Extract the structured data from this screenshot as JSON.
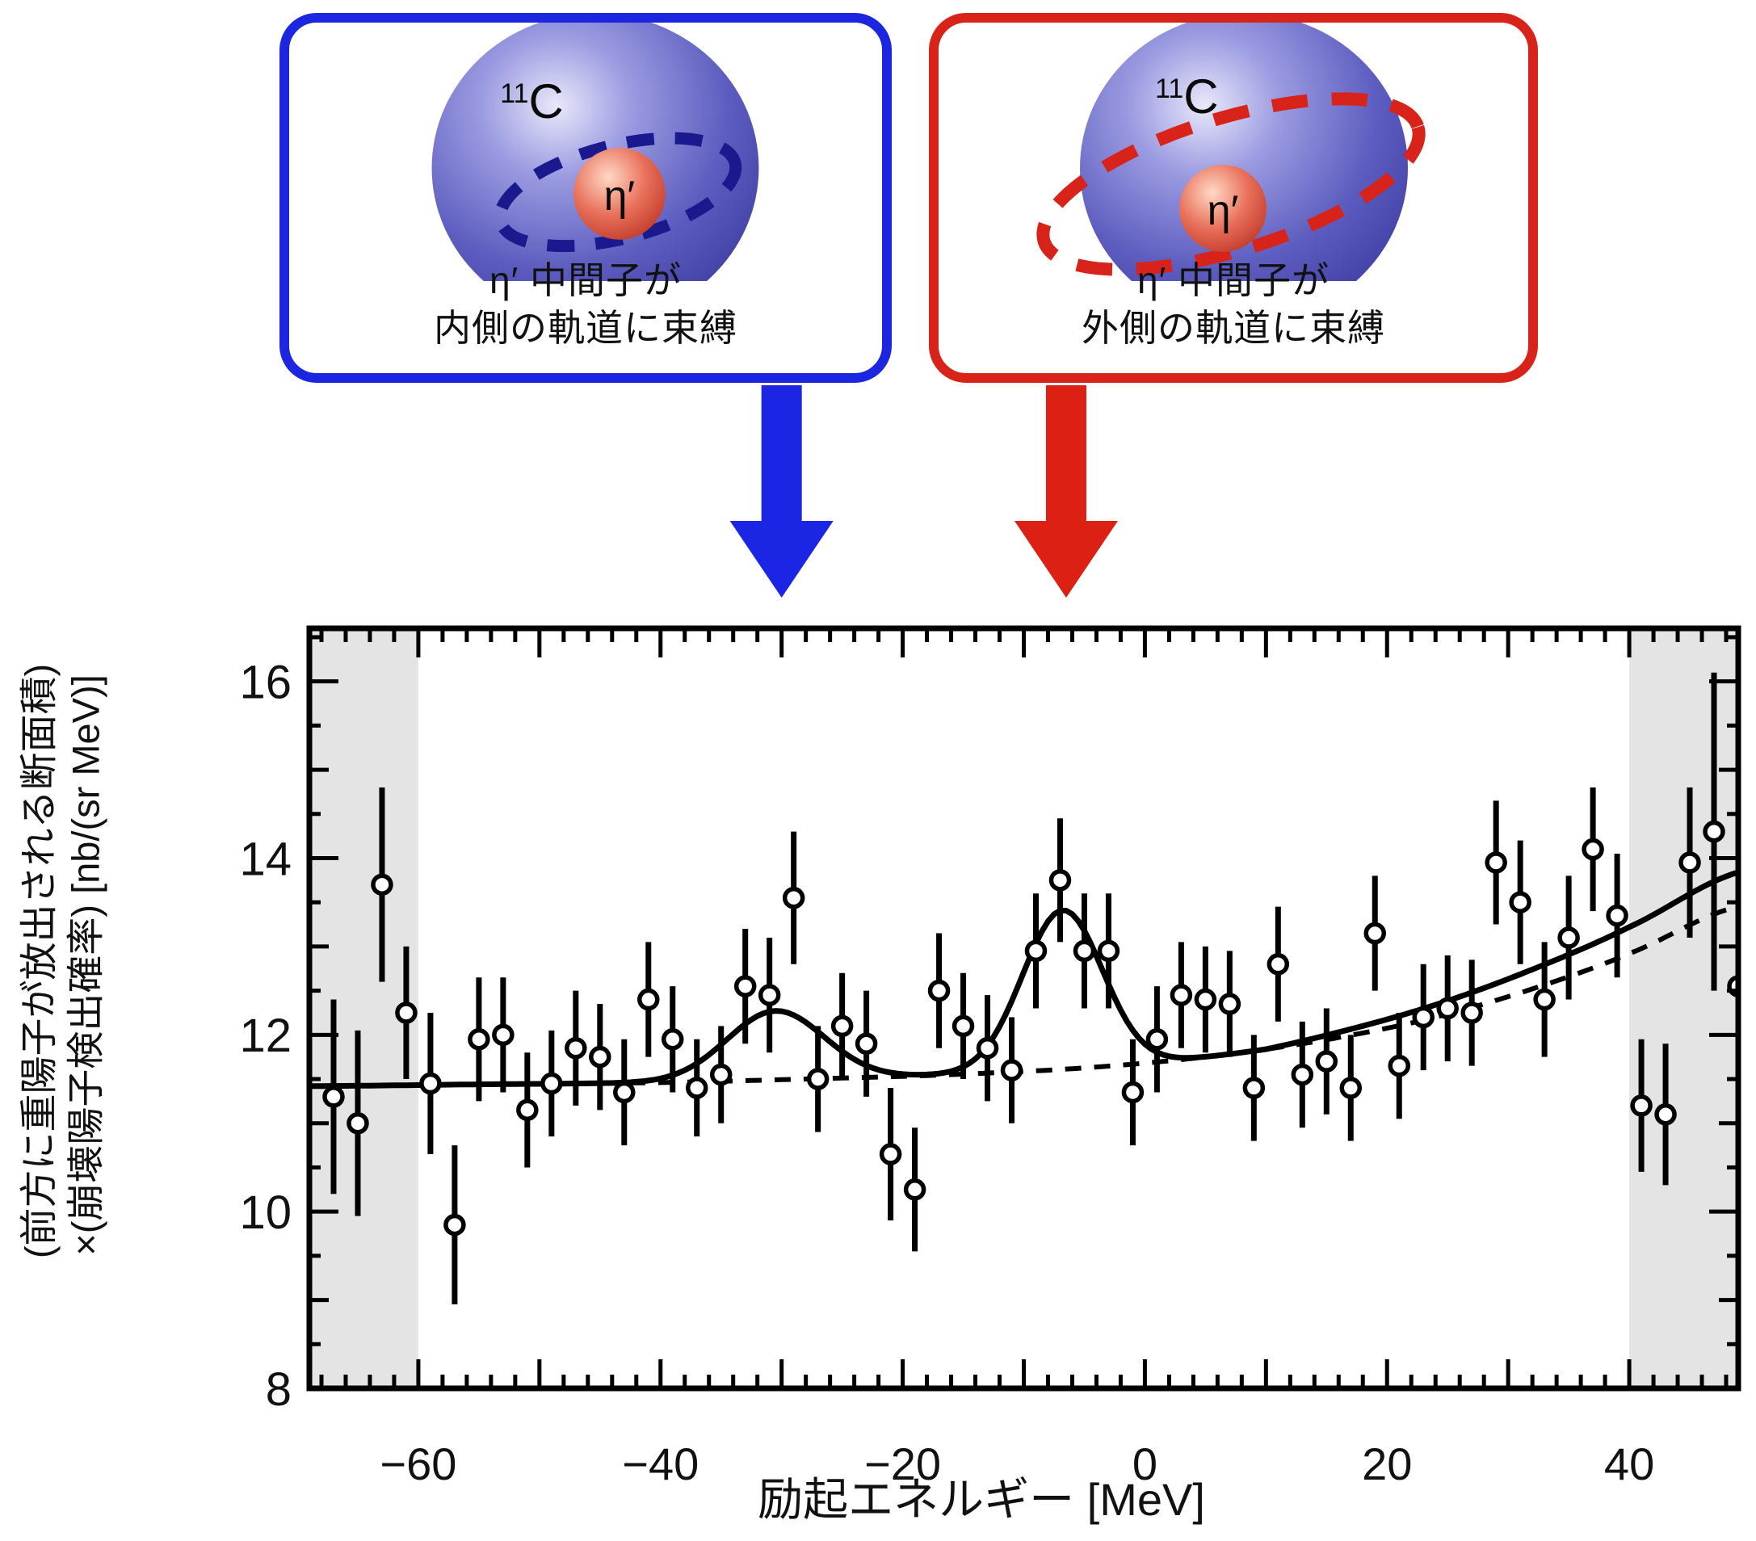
{
  "boxes": {
    "left": {
      "isotope_mass": "11",
      "isotope_element": "C",
      "meson": "η′",
      "caption_line1": "η′ 中間子が",
      "caption_line2": "内側の軌道に束縛",
      "border_color": "#1c25e0",
      "orbit_color": "#1a1a8e",
      "orbit": "inner"
    },
    "right": {
      "isotope_mass": "11",
      "isotope_element": "C",
      "meson": "η′",
      "caption_line1": "η′ 中間子が",
      "caption_line2": "外側の軌道に束縛",
      "border_color": "#d8231a",
      "orbit_color": "#d8231a",
      "orbit": "outer"
    }
  },
  "arrows": {
    "blue_arrow": {
      "energy_mev": -30,
      "color": "#1c25e3"
    },
    "red_arrow": {
      "energy_mev": -6.5,
      "color": "#da2114"
    }
  },
  "chart_data": {
    "type": "scatter",
    "title": "",
    "xlabel": "励起エネルギー [MeV]",
    "ylabel_line1": "(前方に重陽子が放出される断面積)",
    "ylabel_line2": "×(崩壊陽子検出確率) [nb/(sr MeV)]",
    "xlim": [
      -69,
      49
    ],
    "ylim": [
      8,
      16.6
    ],
    "grid": false,
    "legend": "none",
    "xticks": {
      "label_values": [
        -60,
        -40,
        -20,
        0,
        20,
        40
      ],
      "labels": [
        "−60",
        "−40",
        "−20",
        "0",
        "20",
        "40"
      ],
      "major_step": 10,
      "minor_step": 2
    },
    "yticks": {
      "label_values": [
        8,
        10,
        12,
        14,
        16
      ],
      "labels": [
        "8",
        "10",
        "12",
        "14",
        "16"
      ],
      "mid_step": 1,
      "minor_step": 0.5
    },
    "shaded_regions": [
      [
        -69,
        -60
      ],
      [
        40,
        49
      ]
    ],
    "shade_color": "#e4e4e4",
    "points": {
      "x": [
        -67,
        -65,
        -63,
        -61,
        -59,
        -57,
        -55,
        -53,
        -51,
        -49,
        -47,
        -45,
        -43,
        -41,
        -39,
        -37,
        -35,
        -33,
        -31,
        -29,
        -27,
        -25,
        -23,
        -21,
        -19,
        -17,
        -15,
        -13,
        -11,
        -9,
        -7,
        -5,
        -3,
        -1,
        1,
        3,
        5,
        7,
        9,
        11,
        13,
        15,
        17,
        19,
        21,
        23,
        25,
        27,
        29,
        31,
        33,
        35,
        37,
        39,
        41,
        43,
        45,
        47,
        49
      ],
      "y": [
        11.3,
        11.0,
        13.7,
        12.25,
        11.45,
        9.85,
        11.95,
        12.0,
        11.15,
        11.45,
        11.85,
        11.75,
        11.35,
        12.4,
        11.95,
        11.4,
        11.55,
        12.55,
        12.45,
        13.55,
        11.5,
        12.1,
        11.9,
        10.65,
        10.25,
        12.5,
        12.1,
        11.85,
        11.6,
        12.95,
        13.75,
        12.95,
        12.95,
        11.35,
        11.95,
        12.45,
        12.4,
        12.35,
        11.4,
        12.8,
        11.55,
        11.7,
        11.4,
        13.15,
        11.65,
        12.2,
        12.3,
        12.25,
        13.95,
        13.5,
        12.4,
        13.1,
        14.1,
        13.35,
        11.2,
        11.1,
        13.95,
        14.3,
        12.55
      ],
      "yerr": [
        1.1,
        1.05,
        1.1,
        0.75,
        0.8,
        0.9,
        0.7,
        0.65,
        0.65,
        0.6,
        0.65,
        0.6,
        0.6,
        0.65,
        0.6,
        0.55,
        0.55,
        0.65,
        0.65,
        0.75,
        0.6,
        0.6,
        0.6,
        0.75,
        0.7,
        0.65,
        0.6,
        0.6,
        0.6,
        0.65,
        0.7,
        0.65,
        0.65,
        0.6,
        0.6,
        0.6,
        0.6,
        0.6,
        0.6,
        0.65,
        0.6,
        0.6,
        0.6,
        0.65,
        0.6,
        0.6,
        0.6,
        0.6,
        0.7,
        0.7,
        0.65,
        0.7,
        0.7,
        0.7,
        0.75,
        0.8,
        0.85,
        1.8,
        0.75
      ]
    },
    "fit_background_dashed": {
      "control_points": [
        [
          -69,
          11.42
        ],
        [
          -55,
          11.44
        ],
        [
          -40,
          11.46
        ],
        [
          -28,
          11.5
        ],
        [
          -18,
          11.54
        ],
        [
          -8,
          11.6
        ],
        [
          0,
          11.68
        ],
        [
          8,
          11.8
        ],
        [
          16,
          11.97
        ],
        [
          24,
          12.2
        ],
        [
          32,
          12.52
        ],
        [
          40,
          12.92
        ],
        [
          49,
          13.45
        ]
      ],
      "style": "dashed",
      "color": "#000000"
    },
    "fit_total_solid": {
      "peaks": [
        {
          "center": -30.5,
          "sigma": 4.0,
          "amplitude": 0.78,
          "label": "inner-orbit bound state"
        },
        {
          "center": -6.8,
          "sigma": 3.3,
          "amplitude": 1.8,
          "label": "outer-orbit bound state"
        }
      ],
      "extra_slope": {
        "start": 10,
        "coef": 0.01
      },
      "style": "solid",
      "color": "#000000"
    }
  }
}
